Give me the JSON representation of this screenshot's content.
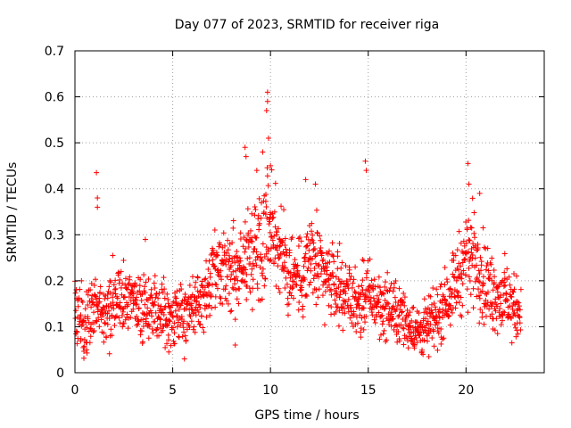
{
  "chart_data": {
    "type": "scatter",
    "title": "Day 077 of 2023, SRMTID for receiver riga",
    "xlabel": "GPS time / hours",
    "ylabel": "SRMTID / TECUs",
    "xlim": [
      0,
      24
    ],
    "ylim": [
      0,
      0.7
    ],
    "x_ticks": [
      "0",
      "5",
      "10",
      "15",
      "20"
    ],
    "x_tick_values": [
      0,
      5,
      10,
      15,
      20
    ],
    "y_ticks": [
      "0",
      "0.1",
      "0.2",
      "0.3",
      "0.4",
      "0.5",
      "0.6",
      "0.7"
    ],
    "y_tick_values": [
      0,
      0.1,
      0.2,
      0.3,
      0.4,
      0.5,
      0.6,
      0.7
    ],
    "grid": true,
    "marker": "+",
    "color": "#ff0000",
    "x_range_of_data": [
      0,
      22.8
    ],
    "profile": {
      "hours": [
        0,
        0.5,
        1.0,
        1.5,
        2.0,
        2.5,
        3.0,
        3.5,
        4.0,
        4.5,
        5.0,
        5.5,
        6.0,
        6.5,
        7.0,
        7.5,
        8.0,
        8.5,
        9.0,
        9.5,
        10.0,
        10.5,
        11.0,
        11.5,
        12.0,
        12.5,
        13.0,
        13.5,
        14.0,
        14.5,
        15.0,
        15.5,
        16.0,
        16.5,
        17.0,
        17.5,
        18.0,
        18.5,
        19.0,
        19.5,
        20.0,
        20.5,
        21.0,
        21.5,
        22.0,
        22.5,
        22.8
      ],
      "center": [
        0.14,
        0.1,
        0.15,
        0.13,
        0.16,
        0.17,
        0.14,
        0.14,
        0.15,
        0.13,
        0.12,
        0.13,
        0.14,
        0.15,
        0.2,
        0.21,
        0.22,
        0.22,
        0.26,
        0.3,
        0.33,
        0.26,
        0.22,
        0.2,
        0.25,
        0.22,
        0.2,
        0.19,
        0.17,
        0.15,
        0.17,
        0.15,
        0.14,
        0.13,
        0.11,
        0.09,
        0.1,
        0.12,
        0.16,
        0.2,
        0.25,
        0.26,
        0.19,
        0.17,
        0.16,
        0.14,
        0.13
      ],
      "spread": [
        0.06,
        0.05,
        0.06,
        0.05,
        0.06,
        0.06,
        0.05,
        0.05,
        0.05,
        0.05,
        0.05,
        0.05,
        0.05,
        0.05,
        0.06,
        0.06,
        0.07,
        0.07,
        0.08,
        0.09,
        0.1,
        0.08,
        0.07,
        0.06,
        0.08,
        0.07,
        0.06,
        0.06,
        0.05,
        0.05,
        0.06,
        0.05,
        0.05,
        0.05,
        0.04,
        0.04,
        0.04,
        0.05,
        0.05,
        0.06,
        0.08,
        0.08,
        0.07,
        0.06,
        0.06,
        0.05,
        0.05
      ]
    },
    "peaks": [
      {
        "x": 1.1,
        "y": 0.435
      },
      {
        "x": 1.15,
        "y": 0.38
      },
      {
        "x": 1.15,
        "y": 0.36
      },
      {
        "x": 3.6,
        "y": 0.29
      },
      {
        "x": 8.7,
        "y": 0.49
      },
      {
        "x": 8.75,
        "y": 0.47
      },
      {
        "x": 9.3,
        "y": 0.44
      },
      {
        "x": 9.6,
        "y": 0.48
      },
      {
        "x": 9.8,
        "y": 0.57
      },
      {
        "x": 9.85,
        "y": 0.61
      },
      {
        "x": 9.85,
        "y": 0.59
      },
      {
        "x": 9.9,
        "y": 0.51
      },
      {
        "x": 10.0,
        "y": 0.45
      },
      {
        "x": 11.8,
        "y": 0.42
      },
      {
        "x": 12.3,
        "y": 0.41
      },
      {
        "x": 14.85,
        "y": 0.46
      },
      {
        "x": 14.9,
        "y": 0.44
      },
      {
        "x": 20.1,
        "y": 0.455
      },
      {
        "x": 20.15,
        "y": 0.41
      },
      {
        "x": 20.7,
        "y": 0.39
      }
    ],
    "lows": [
      {
        "x": 5.6,
        "y": 0.03
      },
      {
        "x": 8.2,
        "y": 0.06
      },
      {
        "x": 17.8,
        "y": 0.04
      },
      {
        "x": 18.1,
        "y": 0.035
      },
      {
        "x": 4.8,
        "y": 0.045
      }
    ]
  }
}
